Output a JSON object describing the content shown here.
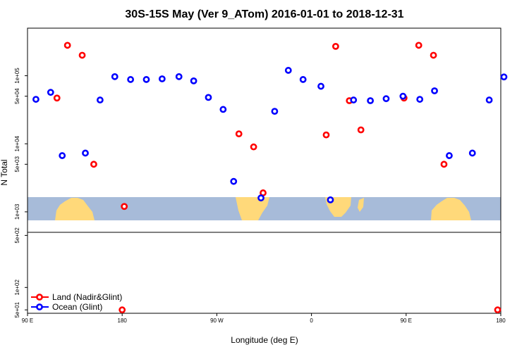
{
  "chart_data": {
    "type": "scatter",
    "title": "30S-15S May (Ver 9_ATom)   2016-01-01 to 2018-12-31",
    "xlabel": "Longitude (deg E)",
    "ylabel": "N Total",
    "yscale": "log",
    "x_ticks": [
      {
        "value": 90,
        "label": "90 E"
      },
      {
        "value": 180,
        "label": "180"
      },
      {
        "value": 270,
        "label": "90 W"
      },
      {
        "value": 360,
        "label": "0"
      },
      {
        "value": 450,
        "label": "90 E"
      },
      {
        "value": 540,
        "label": "180"
      }
    ],
    "xlim": [
      90,
      540
    ],
    "upper_panel": {
      "ylim": [
        500,
        500000
      ],
      "y_ticks": [
        {
          "value": 1000,
          "label": "1e+03"
        },
        {
          "value": 5000,
          "label": "5e+03"
        },
        {
          "value": 10000,
          "label": "1e+04"
        },
        {
          "value": 50000,
          "label": "5e+04"
        },
        {
          "value": 100000,
          "label": "1e+05"
        }
      ]
    },
    "lower_panel": {
      "ylim": [
        45,
        550
      ],
      "y_ticks": [
        {
          "value": 50,
          "label": "5e+01"
        },
        {
          "value": 100,
          "label": "1e+02"
        },
        {
          "value": 500,
          "label": "5e+02"
        }
      ]
    },
    "series": [
      {
        "name": "Land (Nadir&Glint)",
        "color": "#ff0000",
        "upper": [
          [
            118,
            47000
          ],
          [
            128,
            280000
          ],
          [
            142,
            200000
          ],
          [
            153,
            5000
          ],
          [
            182,
            1200
          ],
          [
            291,
            14000
          ],
          [
            305,
            9000
          ],
          [
            314,
            1900
          ],
          [
            374,
            13500
          ],
          [
            383,
            270000
          ],
          [
            396,
            43000
          ],
          [
            407,
            16000
          ],
          [
            448,
            47000
          ],
          [
            462,
            280000
          ],
          [
            476,
            200000
          ],
          [
            486,
            5000
          ]
        ],
        "lower": [
          [
            180,
            50
          ],
          [
            537,
            50
          ]
        ]
      },
      {
        "name": "Ocean (Glint)",
        "color": "#0000ff",
        "upper": [
          [
            98,
            45000
          ],
          [
            112,
            57000
          ],
          [
            123,
            6700
          ],
          [
            145,
            7300
          ],
          [
            159,
            44000
          ],
          [
            173,
            97000
          ],
          [
            188,
            88000
          ],
          [
            203,
            88000
          ],
          [
            218,
            90000
          ],
          [
            234,
            97000
          ],
          [
            248,
            84000
          ],
          [
            262,
            48000
          ],
          [
            276,
            32000
          ],
          [
            286,
            2800
          ],
          [
            312,
            1600
          ],
          [
            325,
            30000
          ],
          [
            338,
            120000
          ],
          [
            352,
            88000
          ],
          [
            369,
            70000
          ],
          [
            378,
            1500
          ],
          [
            400,
            44000
          ],
          [
            416,
            43000
          ],
          [
            431,
            46000
          ],
          [
            447,
            50000
          ],
          [
            463,
            45000
          ],
          [
            477,
            60000
          ],
          [
            491,
            6700
          ],
          [
            513,
            7300
          ],
          [
            529,
            44000
          ],
          [
            543,
            96000
          ]
        ],
        "lower": []
      }
    ],
    "legend": {
      "position": "bottom-left"
    },
    "grid": false
  }
}
